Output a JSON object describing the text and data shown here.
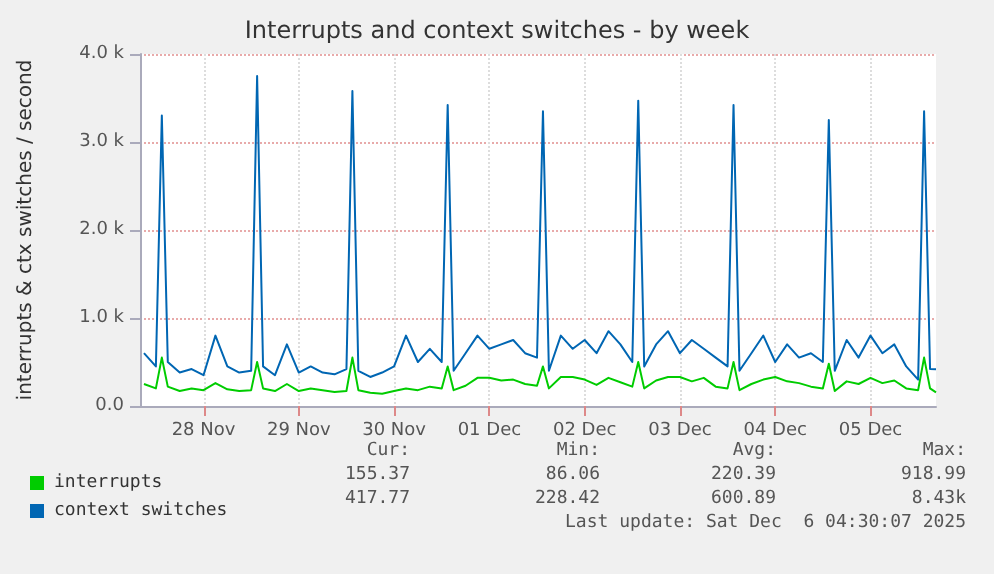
{
  "chart_data": {
    "type": "line",
    "title": "Interrupts and context switches - by week",
    "ylabel": "interrupts & ctx switches / second",
    "x": [
      "2025-11-27T21:00",
      "2025-11-28T00:00",
      "2025-11-28T01:30",
      "2025-11-28T03:00",
      "2025-11-28T06:00",
      "2025-11-28T09:00",
      "2025-11-28T12:00",
      "2025-11-28T15:00",
      "2025-11-28T18:00",
      "2025-11-28T21:00",
      "2025-11-29T00:00",
      "2025-11-29T01:30",
      "2025-11-29T03:00",
      "2025-11-29T06:00",
      "2025-11-29T09:00",
      "2025-11-29T12:00",
      "2025-11-29T15:00",
      "2025-11-29T18:00",
      "2025-11-29T21:00",
      "2025-11-30T00:00",
      "2025-11-30T01:30",
      "2025-11-30T03:00",
      "2025-11-30T06:00",
      "2025-11-30T09:00",
      "2025-11-30T12:00",
      "2025-11-30T15:00",
      "2025-11-30T18:00",
      "2025-11-30T21:00",
      "2025-12-01T00:00",
      "2025-12-01T01:30",
      "2025-12-01T03:00",
      "2025-12-01T06:00",
      "2025-12-01T09:00",
      "2025-12-01T12:00",
      "2025-12-01T15:00",
      "2025-12-01T18:00",
      "2025-12-01T21:00",
      "2025-12-02T00:00",
      "2025-12-02T01:30",
      "2025-12-02T03:00",
      "2025-12-02T06:00",
      "2025-12-02T09:00",
      "2025-12-02T12:00",
      "2025-12-02T15:00",
      "2025-12-02T18:00",
      "2025-12-02T21:00",
      "2025-12-03T00:00",
      "2025-12-03T01:30",
      "2025-12-03T03:00",
      "2025-12-03T06:00",
      "2025-12-03T09:00",
      "2025-12-03T12:00",
      "2025-12-03T15:00",
      "2025-12-03T18:00",
      "2025-12-03T21:00",
      "2025-12-04T00:00",
      "2025-12-04T01:30",
      "2025-12-04T03:00",
      "2025-12-04T06:00",
      "2025-12-04T09:00",
      "2025-12-04T12:00",
      "2025-12-04T15:00",
      "2025-12-04T18:00",
      "2025-12-04T21:00",
      "2025-12-05T00:00",
      "2025-12-05T01:30",
      "2025-12-05T03:00",
      "2025-12-05T06:00",
      "2025-12-05T09:00",
      "2025-12-05T12:00",
      "2025-12-05T15:00",
      "2025-12-05T18:00",
      "2025-12-05T21:00",
      "2025-12-06T00:00",
      "2025-12-06T01:30",
      "2025-12-06T03:00",
      "2025-12-06T04:30"
    ],
    "series": [
      {
        "name": "interrupts",
        "color": "#00cc00",
        "values": [
          250,
          200,
          550,
          220,
          170,
          200,
          180,
          260,
          190,
          170,
          180,
          500,
          200,
          170,
          250,
          170,
          200,
          180,
          160,
          170,
          550,
          180,
          150,
          140,
          170,
          200,
          180,
          220,
          200,
          450,
          180,
          230,
          320,
          320,
          290,
          300,
          250,
          230,
          450,
          200,
          330,
          330,
          300,
          240,
          320,
          270,
          220,
          500,
          200,
          290,
          330,
          330,
          280,
          320,
          220,
          200,
          500,
          180,
          250,
          300,
          330,
          280,
          260,
          220,
          200,
          480,
          170,
          280,
          250,
          320,
          260,
          290,
          200,
          180,
          550,
          200,
          155
        ]
      },
      {
        "name": "context switches",
        "color": "#0066b3",
        "values": [
          600,
          450,
          3300,
          500,
          380,
          420,
          350,
          800,
          450,
          380,
          400,
          3750,
          450,
          350,
          700,
          380,
          450,
          380,
          360,
          420,
          3580,
          400,
          330,
          380,
          450,
          800,
          500,
          650,
          500,
          3420,
          400,
          600,
          800,
          650,
          700,
          750,
          600,
          550,
          3350,
          400,
          800,
          650,
          750,
          600,
          850,
          700,
          500,
          3470,
          450,
          700,
          850,
          600,
          750,
          650,
          550,
          450,
          3420,
          400,
          600,
          800,
          500,
          700,
          550,
          600,
          500,
          3250,
          400,
          750,
          550,
          800,
          600,
          700,
          450,
          300,
          3350,
          420,
          418
        ]
      }
    ],
    "xlim": [
      "2025-11-27T20:00",
      "2025-12-06T04:30"
    ],
    "xticks": [
      {
        "value": "2025-11-28T12:00",
        "label": "28 Nov"
      },
      {
        "value": "2025-11-29T12:00",
        "label": "29 Nov"
      },
      {
        "value": "2025-11-30T12:00",
        "label": "30 Nov"
      },
      {
        "value": "2025-12-01T12:00",
        "label": "01 Dec"
      },
      {
        "value": "2025-12-02T12:00",
        "label": "02 Dec"
      },
      {
        "value": "2025-12-03T12:00",
        "label": "03 Dec"
      },
      {
        "value": "2025-12-04T12:00",
        "label": "04 Dec"
      },
      {
        "value": "2025-12-05T12:00",
        "label": "05 Dec"
      }
    ],
    "ylim": [
      0,
      4000
    ],
    "yticks": [
      {
        "value": 0,
        "label": "0.0"
      },
      {
        "value": 1000,
        "label": "1.0 k"
      },
      {
        "value": 2000,
        "label": "2.0 k"
      },
      {
        "value": 3000,
        "label": "3.0 k"
      },
      {
        "value": 4000,
        "label": "4.0 k"
      }
    ],
    "grid": true,
    "legend": "bottom left",
    "marker": "none",
    "line_style": "solid",
    "annotations": [
      "Cur:",
      "Min:",
      "Avg:",
      "Max:",
      "155.37",
      "86.06",
      "220.39",
      "918.99",
      "417.77",
      "228.42",
      "600.89",
      "8.43k",
      "Last update: Sat Dec  6 04:30:07 2025"
    ]
  }
}
